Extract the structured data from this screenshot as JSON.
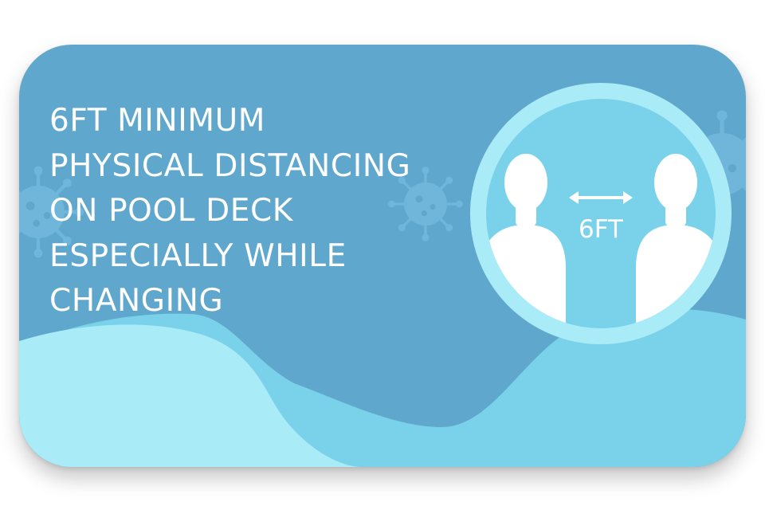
{
  "headline": {
    "line1": "6FT MINIMUM",
    "line2": "PHYSICAL DISTANCING",
    "line3": "ON POOL DECK",
    "line4": "ESPECIALLY WHILE",
    "line5": "CHANGING"
  },
  "badge": {
    "distance_label": "6FT"
  },
  "icons": [
    "virus-icon",
    "person-icon",
    "double-arrow-icon"
  ],
  "colors": {
    "card_background": "#5fa7cc",
    "wave_light": "#a9ecf7",
    "wave_mid": "#7ad2ea",
    "badge_ring": "#a9ecf7",
    "badge_inner": "#7ad2ea",
    "text": "#ffffff"
  }
}
